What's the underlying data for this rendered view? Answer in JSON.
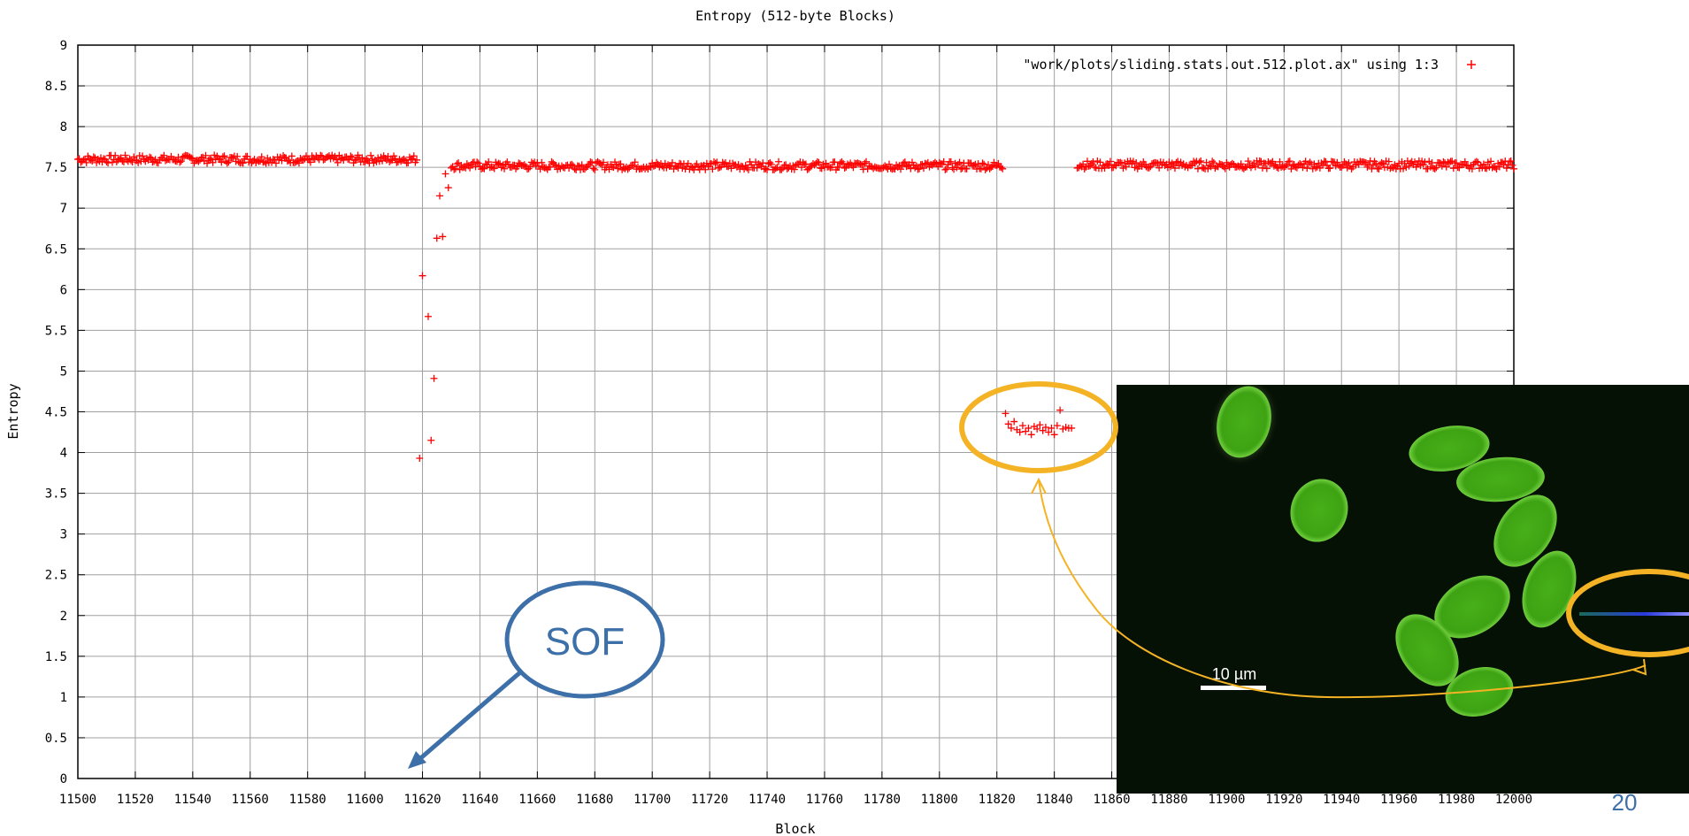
{
  "chart_data": {
    "type": "scatter",
    "title": "Entropy (512-byte Blocks)",
    "xlabel": "Block",
    "ylabel": "Entropy",
    "xlim": [
      11500,
      12000
    ],
    "ylim": [
      0,
      9
    ],
    "x_ticks": [
      11500,
      11520,
      11540,
      11560,
      11580,
      11600,
      11620,
      11640,
      11660,
      11680,
      11700,
      11720,
      11740,
      11760,
      11780,
      11800,
      11820,
      11840,
      11860,
      11880,
      11900,
      11920,
      11940,
      11960,
      11980,
      12000
    ],
    "y_ticks": [
      0,
      0.5,
      1,
      1.5,
      2,
      2.5,
      3,
      3.5,
      4,
      4.5,
      5,
      5.5,
      6,
      6.5,
      7,
      7.5,
      8,
      8.5,
      9
    ],
    "y_tick_labels": [
      "0",
      "0.5",
      "1",
      "1.5",
      "2",
      "2.5",
      "3",
      "3.5",
      "4",
      "4.5",
      "5",
      "5.5",
      "6",
      "6.5",
      "7",
      "7.5",
      "8",
      "8.5",
      "9"
    ],
    "grid": true,
    "legend_position": "top-right",
    "series": [
      {
        "name": "\"work/plots/sliding.stats.out.512.plot.ax\" using 1:3",
        "marker": "+",
        "color": "#ff0000",
        "segments": [
          {
            "x_start": 11500,
            "x_end": 11618,
            "y": 7.6,
            "jitter": 0.05
          },
          {
            "x_start": 11630,
            "x_end": 11822,
            "y": 7.52,
            "jitter": 0.05
          },
          {
            "x_start": 11848,
            "x_end": 12000,
            "y": 7.53,
            "jitter": 0.05
          }
        ],
        "points": [
          {
            "x": 11619,
            "y": 3.93
          },
          {
            "x": 11620,
            "y": 6.17
          },
          {
            "x": 11622,
            "y": 5.67
          },
          {
            "x": 11623,
            "y": 4.15
          },
          {
            "x": 11624,
            "y": 4.91
          },
          {
            "x": 11625,
            "y": 6.63
          },
          {
            "x": 11626,
            "y": 7.15
          },
          {
            "x": 11627,
            "y": 6.65
          },
          {
            "x": 11628,
            "y": 7.42
          },
          {
            "x": 11629,
            "y": 7.25
          },
          {
            "x": 11823,
            "y": 4.48
          },
          {
            "x": 11824,
            "y": 4.35
          },
          {
            "x": 11825,
            "y": 4.3
          },
          {
            "x": 11826,
            "y": 4.38
          },
          {
            "x": 11827,
            "y": 4.28
          },
          {
            "x": 11828,
            "y": 4.25
          },
          {
            "x": 11829,
            "y": 4.33
          },
          {
            "x": 11830,
            "y": 4.26
          },
          {
            "x": 11831,
            "y": 4.3
          },
          {
            "x": 11832,
            "y": 4.22
          },
          {
            "x": 11833,
            "y": 4.32
          },
          {
            "x": 11834,
            "y": 4.29
          },
          {
            "x": 11835,
            "y": 4.34
          },
          {
            "x": 11836,
            "y": 4.27
          },
          {
            "x": 11837,
            "y": 4.31
          },
          {
            "x": 11838,
            "y": 4.25
          },
          {
            "x": 11839,
            "y": 4.3
          },
          {
            "x": 11840,
            "y": 4.22
          },
          {
            "x": 11841,
            "y": 4.33
          },
          {
            "x": 11842,
            "y": 4.52
          },
          {
            "x": 11843,
            "y": 4.29
          },
          {
            "x": 11844,
            "y": 4.31
          },
          {
            "x": 11845,
            "y": 4.3
          },
          {
            "x": 11846,
            "y": 4.3
          }
        ]
      }
    ]
  },
  "annotations": {
    "sof_label": "SOF",
    "scale_bar_label": "10 µm",
    "highlight_color": "#f4b324",
    "callout_color": "#3d6fa8"
  },
  "slide": {
    "number": "20"
  }
}
